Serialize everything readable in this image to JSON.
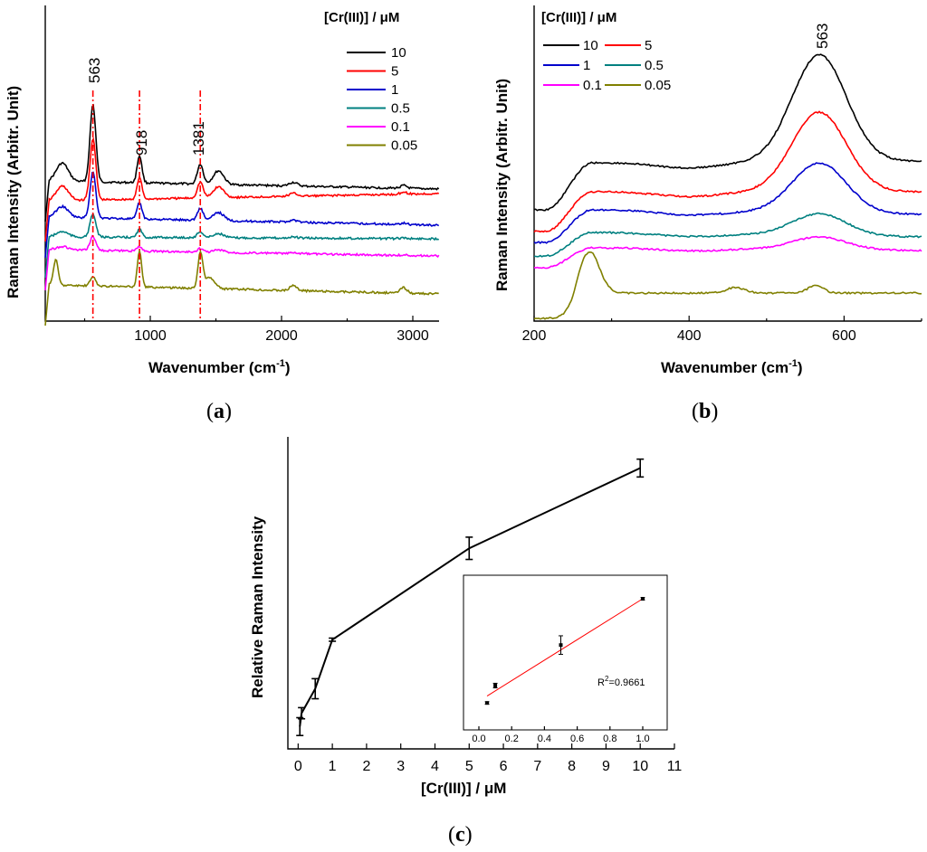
{
  "chart_data": [
    {
      "panel": "a",
      "panel_label": "a",
      "type": "line",
      "xlabel": "Wavenumber (cm",
      "xlabel_sup": "-1",
      "xlabel_close": ")",
      "ylabel": "Raman Intensity (Arbitr. Unit)",
      "xlim": [
        200,
        3200
      ],
      "xticks": [
        "1000",
        "2000",
        "3000"
      ],
      "legend_title": "[Cr(III)] / μM",
      "legend_position": "top-right",
      "peak_labels": [
        "563",
        "918",
        "1381"
      ],
      "peaks": [
        563,
        918,
        1381
      ],
      "series": [
        {
          "name": "10",
          "color": "#000000"
        },
        {
          "name": "5",
          "color": "#ff0000"
        },
        {
          "name": "1",
          "color": "#0000cc"
        },
        {
          "name": "0.5",
          "color": "#008080"
        },
        {
          "name": "0.1",
          "color": "#ff00ff"
        },
        {
          "name": "0.05",
          "color": "#808000"
        }
      ]
    },
    {
      "panel": "b",
      "panel_label": "b",
      "type": "line",
      "xlabel": "Wavenumber (cm",
      "xlabel_sup": "-1",
      "xlabel_close": ")",
      "ylabel": "Raman Intensity (Arbitr. Unit)",
      "xlim": [
        200,
        700
      ],
      "xticks": [
        "200",
        "400",
        "600"
      ],
      "legend_title": "[Cr(III)] / μM",
      "legend_position": "top-left",
      "peak_labels": [
        "563"
      ],
      "series": [
        {
          "name": "10",
          "color": "#000000"
        },
        {
          "name": "5",
          "color": "#ff0000"
        },
        {
          "name": "1",
          "color": "#0000cc"
        },
        {
          "name": "0.5",
          "color": "#008080"
        },
        {
          "name": "0.1",
          "color": "#ff00ff"
        },
        {
          "name": "0.05",
          "color": "#808000"
        }
      ]
    },
    {
      "panel": "c",
      "panel_label": "c",
      "type": "line",
      "xlabel": "[Cr(III)] / μM",
      "ylabel": "Relative Raman Intensity",
      "xlim": [
        -0.3,
        11
      ],
      "xticks": [
        "0",
        "1",
        "2",
        "3",
        "4",
        "5",
        "6",
        "7",
        "8",
        "9",
        "10",
        "11"
      ],
      "x": [
        0.05,
        0.1,
        0.5,
        1,
        5,
        10
      ],
      "y": [
        0.1,
        0.16,
        0.27,
        0.49,
        0.9,
        1.26
      ],
      "yerr": [
        0.04,
        0.025,
        0.045,
        0.007,
        0.05,
        0.04
      ],
      "inset": {
        "type": "scatter",
        "xlim": [
          0,
          1.05
        ],
        "xticks": [
          "0.0",
          "0.2",
          "0.4",
          "0.6",
          "0.8",
          "1.0"
        ],
        "x": [
          0.05,
          0.1,
          0.5,
          1.0
        ],
        "y": [
          0.1,
          0.25,
          0.6,
          1.0
        ],
        "yerr": [
          0.01,
          0.02,
          0.08,
          0.01
        ],
        "fit": {
          "x": [
            0.05,
            1.0
          ],
          "y": [
            0.16,
            1.0
          ],
          "color": "#ff0000"
        },
        "r2_prefix": "R",
        "r2_sup": "2",
        "r2_value": "=0.9661"
      }
    }
  ]
}
